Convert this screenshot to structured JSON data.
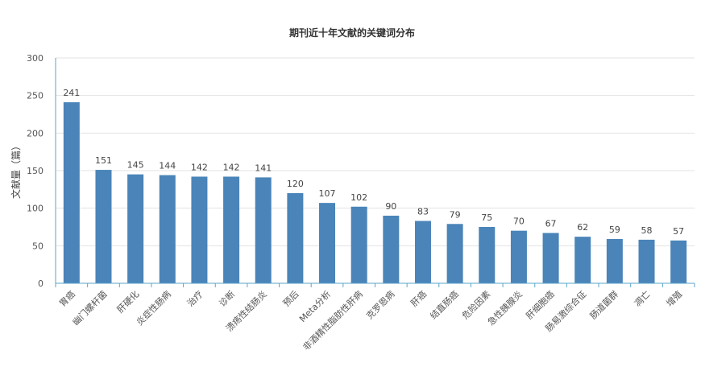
{
  "chart_data": {
    "type": "bar",
    "title": "期刊近十年文献的关键词分布",
    "xlabel": "",
    "ylabel": "文献量（篇）",
    "ylim": [
      0,
      300
    ],
    "yticks": [
      0,
      50,
      100,
      150,
      200,
      250,
      300
    ],
    "grid": true,
    "legend": "none",
    "colors": {
      "bar": "#4a84b8",
      "axis": "#5aa6c8",
      "grid": "#e3e3e3"
    },
    "categories": [
      "胃癌",
      "幽门螺杆菌",
      "肝硬化",
      "炎症性肠病",
      "治疗",
      "诊断",
      "溃疡性结肠炎",
      "预后",
      "Meta分析",
      "非酒精性脂肪性肝病",
      "克罗恩病",
      "肝癌",
      "结直肠癌",
      "危险因素",
      "急性胰腺炎",
      "肝细胞癌",
      "肠易激综合征",
      "肠道菌群",
      "凋亡",
      "增殖"
    ],
    "values": [
      241,
      151,
      145,
      144,
      142,
      142,
      141,
      120,
      107,
      102,
      90,
      83,
      79,
      75,
      70,
      67,
      62,
      59,
      58,
      57
    ]
  }
}
